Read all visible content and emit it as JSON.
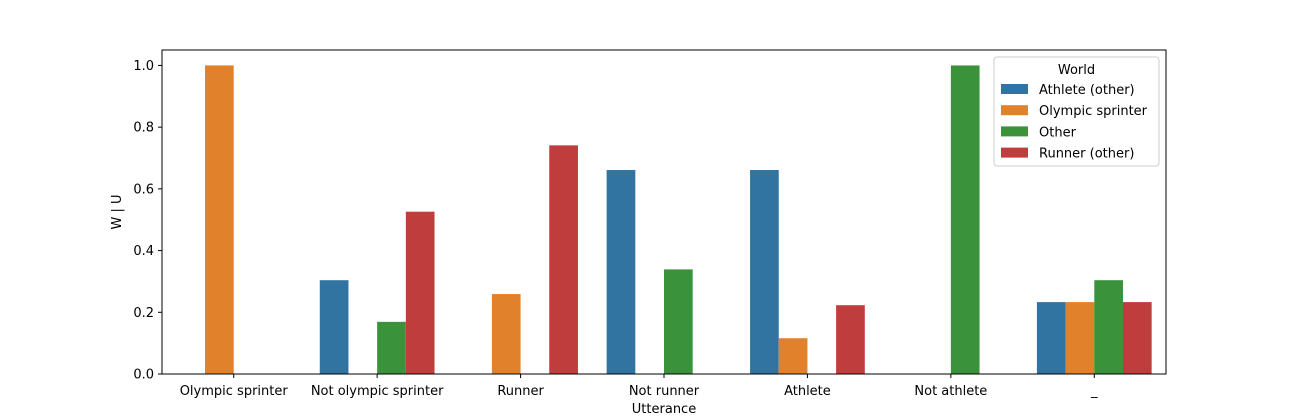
{
  "chart_data": {
    "type": "bar",
    "categories": [
      "Olympic sprinter",
      "Not olympic sprinter",
      "Runner",
      "Not runner",
      "Athlete",
      "Not athlete",
      "_"
    ],
    "xlabel": "Utterance",
    "ylabel": "W | U",
    "ylim": [
      0,
      1.05
    ],
    "yticks": [
      "0.0",
      "0.2",
      "0.4",
      "0.6",
      "0.8",
      "1.0"
    ],
    "grid": false,
    "legend": {
      "title": "World",
      "placement": "top-right"
    },
    "series": [
      {
        "name": "Athlete (other)",
        "color": "#3274a1",
        "values": [
          0,
          0.304,
          0,
          0.661,
          0.661,
          0,
          0.233
        ]
      },
      {
        "name": "Olympic sprinter",
        "color": "#e1812c",
        "values": [
          1.0,
          0,
          0.259,
          0,
          0.116,
          0,
          0.233
        ]
      },
      {
        "name": "Other",
        "color": "#3a923a",
        "values": [
          0,
          0.169,
          0,
          0.339,
          0,
          1.0,
          0.304
        ]
      },
      {
        "name": "Runner (other)",
        "color": "#c03d3e",
        "values": [
          0,
          0.526,
          0.741,
          0,
          0.223,
          0,
          0.233
        ]
      }
    ]
  }
}
